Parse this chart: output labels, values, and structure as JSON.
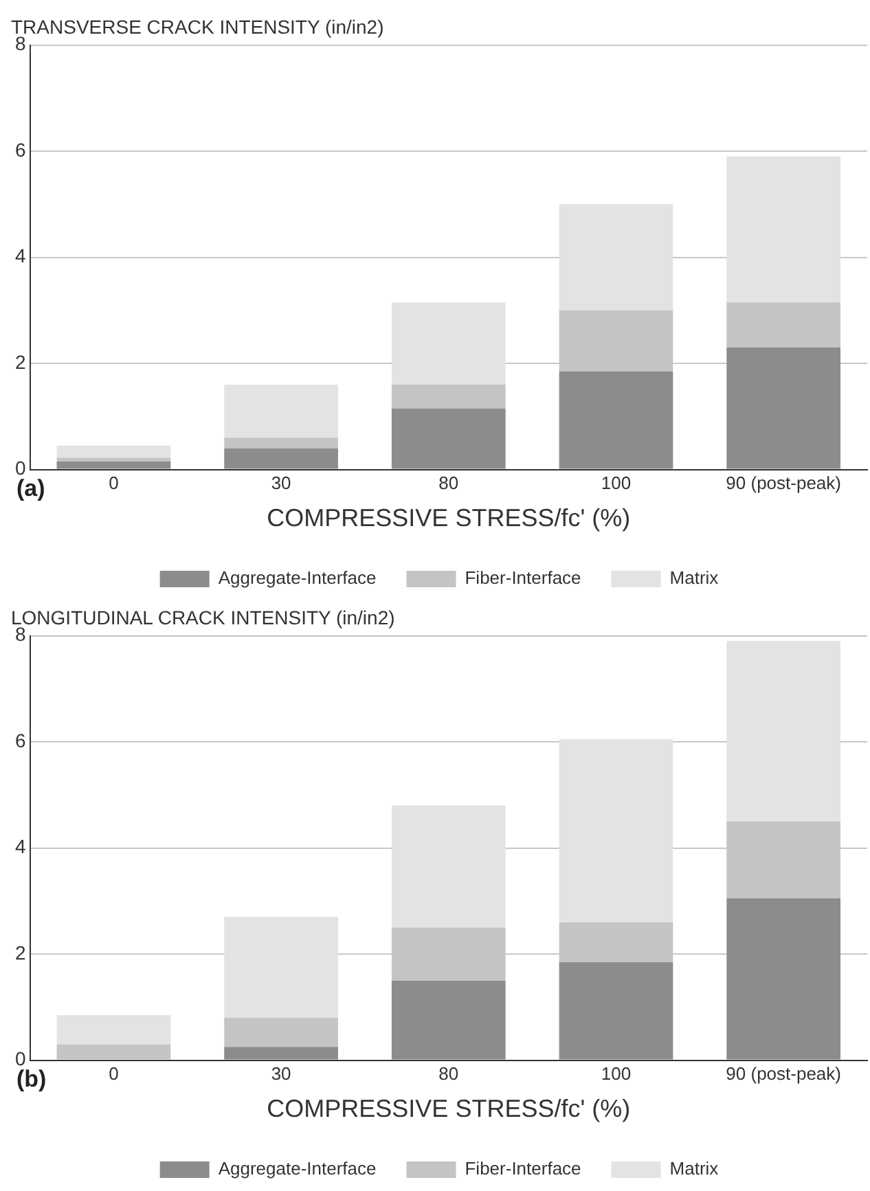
{
  "chart_data": [
    {
      "type": "bar",
      "title": "TRANSVERSE CRACK INTENSITY (in/in2)",
      "xlabel": "COMPRESSIVE STRESS/fc' (%)",
      "annotations": [
        "(a)"
      ],
      "categories": [
        "0",
        "30",
        "80",
        "100",
        "90 (post-peak)"
      ],
      "stacked": true,
      "ylim": [
        0,
        8
      ],
      "yticks": [
        0,
        2,
        4,
        6,
        8
      ],
      "grid": "y",
      "legend": "bottom",
      "series": [
        {
          "name": "Aggregate-Interface",
          "color": "#8c8c8c",
          "values": [
            0.15,
            0.4,
            1.15,
            1.85,
            2.3
          ]
        },
        {
          "name": "Fiber-Interface",
          "color": "#c4c4c4",
          "values": [
            0.07,
            0.2,
            0.45,
            1.15,
            0.85
          ]
        },
        {
          "name": "Matrix",
          "color": "#e3e3e3",
          "values": [
            0.23,
            1.0,
            1.55,
            2.0,
            2.75
          ]
        }
      ]
    },
    {
      "type": "bar",
      "title": "LONGITUDINAL CRACK INTENSITY (in/in2)",
      "xlabel": "COMPRESSIVE STRESS/fc' (%)",
      "annotations": [
        "(b)"
      ],
      "categories": [
        "0",
        "30",
        "80",
        "100",
        "90 (post-peak)"
      ],
      "stacked": true,
      "ylim": [
        0,
        8
      ],
      "yticks": [
        0,
        2,
        4,
        6,
        8
      ],
      "grid": "y",
      "legend": "bottom",
      "series": [
        {
          "name": "Aggregate-Interface",
          "color": "#8c8c8c",
          "values": [
            0,
            0.25,
            1.5,
            1.85,
            3.05
          ]
        },
        {
          "name": "Fiber-Interface",
          "color": "#c4c4c4",
          "values": [
            0.3,
            0.55,
            1.0,
            0.75,
            1.45
          ]
        },
        {
          "name": "Matrix",
          "color": "#e3e3e3",
          "values": [
            0.55,
            1.9,
            2.3,
            3.45,
            3.4
          ]
        }
      ]
    }
  ]
}
